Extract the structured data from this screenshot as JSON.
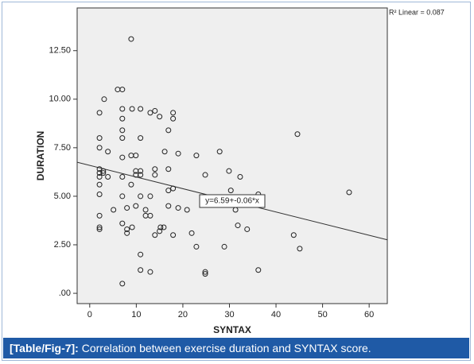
{
  "chart_data": {
    "type": "scatter",
    "x_label": "SYNTAX",
    "y_label": "DURATION",
    "r2_label": "R² Linear = 0.087",
    "fit": {
      "intercept": 6.59,
      "slope": -0.06,
      "label": "y=6.59+-0.06*x"
    },
    "color": "#222222",
    "x": [
      8.9,
      6.0,
      7.0,
      3.1,
      7.0,
      9.1,
      10.9,
      2.1,
      14.0,
      13.0,
      17.9,
      17.9,
      7.0,
      15.0,
      16.9,
      7.0,
      7.0,
      2.1,
      10.9,
      44.6,
      2.1,
      3.9,
      16.1,
      27.9,
      8.9,
      9.9,
      19.0,
      22.9,
      7.0,
      16.9,
      14.0,
      2.1,
      2.9,
      2.1,
      2.9,
      9.9,
      10.9,
      29.9,
      24.8,
      14.0,
      2.1,
      3.9,
      7.0,
      9.9,
      10.9,
      32.3,
      2.1,
      8.9,
      17.9,
      16.9,
      30.3,
      2.1,
      7.0,
      10.9,
      13.0,
      36.2,
      55.7,
      9.9,
      16.9,
      8.0,
      5.1,
      19.0,
      20.9,
      12.0,
      31.3,
      12.0,
      13.0,
      2.1,
      2.1,
      2.1,
      7.0,
      9.1,
      15.2,
      15.9,
      15.0,
      31.8,
      33.8,
      8.0,
      8.0,
      17.9,
      14.0,
      21.9,
      43.8,
      10.9,
      22.9,
      28.9,
      45.1,
      10.9,
      13.0,
      24.8,
      24.8,
      36.2,
      7.0
    ],
    "values": [
      13.1,
      10.5,
      10.5,
      10.0,
      9.5,
      9.5,
      9.5,
      9.3,
      9.4,
      9.3,
      9.3,
      9.0,
      9.0,
      9.1,
      8.4,
      8.4,
      8.0,
      8.0,
      8.0,
      8.2,
      7.5,
      7.3,
      7.3,
      7.3,
      7.1,
      7.1,
      7.2,
      7.1,
      7.0,
      6.4,
      6.4,
      6.4,
      6.3,
      6.2,
      6.2,
      6.3,
      6.3,
      6.3,
      6.1,
      6.1,
      6.0,
      6.0,
      6.0,
      6.1,
      6.1,
      6.0,
      5.6,
      5.6,
      5.4,
      5.3,
      5.3,
      5.1,
      5.0,
      5.0,
      5.0,
      5.1,
      5.2,
      4.5,
      4.5,
      4.4,
      4.3,
      4.4,
      4.3,
      4.3,
      4.3,
      4.0,
      4.0,
      4.0,
      3.4,
      3.3,
      3.6,
      3.4,
      3.4,
      3.4,
      3.2,
      3.5,
      3.3,
      3.3,
      3.1,
      3.0,
      3.0,
      3.1,
      3.0,
      2.0,
      2.4,
      2.4,
      2.3,
      1.2,
      1.1,
      1.1,
      1.0,
      1.2,
      0.5
    ],
    "xlim": [
      -2.7,
      63.9
    ],
    "xticks": [
      0,
      10,
      20,
      30,
      40,
      50,
      60
    ],
    "ylim": [
      -0.53,
      14.7
    ],
    "yticks": [
      {
        "value": 0,
        "label": ".00"
      },
      {
        "value": 2.5,
        "label": "2.50"
      },
      {
        "value": 5,
        "label": "5.00"
      },
      {
        "value": 7.5,
        "label": "7.50"
      },
      {
        "value": 10,
        "label": "10.00"
      },
      {
        "value": 12.5,
        "label": "12.50"
      }
    ]
  },
  "caption": {
    "label": "[Table/Fig-7]:",
    "text": "Correlation between exercise duration and SYNTAX score."
  }
}
